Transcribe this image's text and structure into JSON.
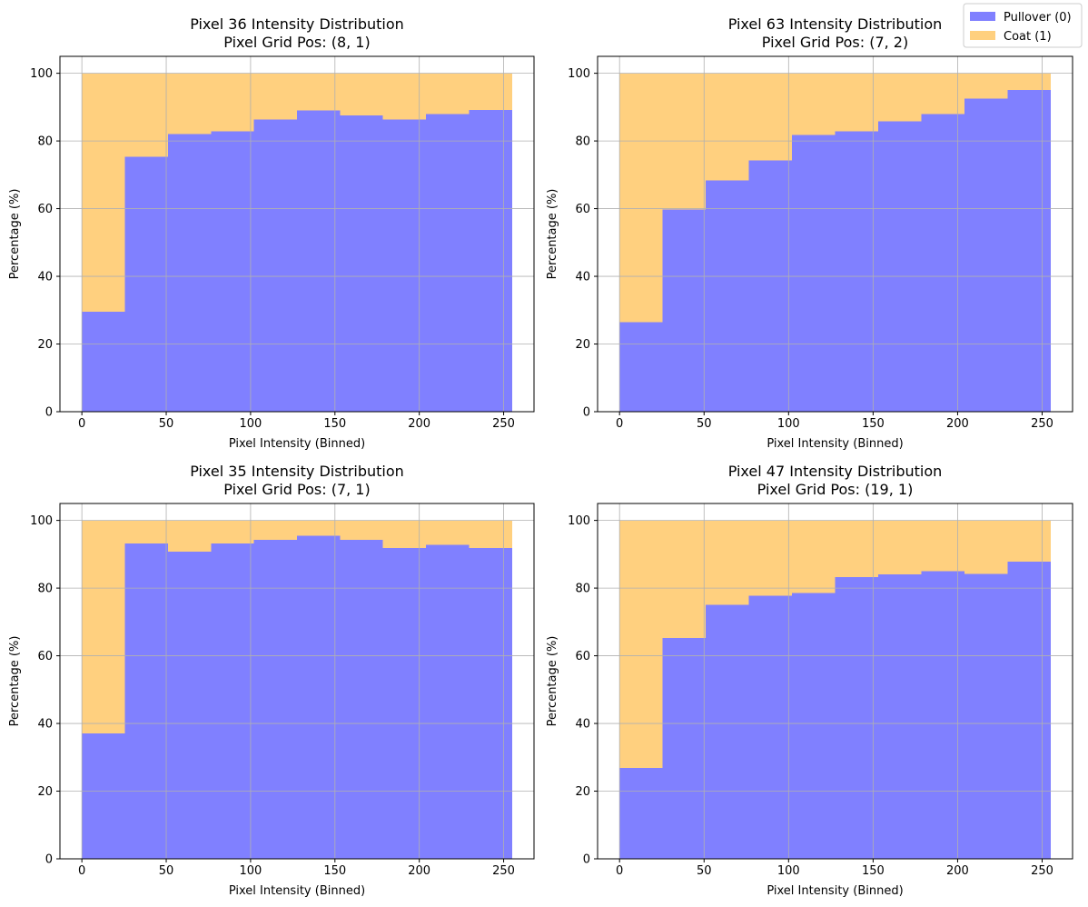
{
  "legend": {
    "placement": "top-right",
    "entries": [
      {
        "label": "Pullover (0)",
        "color": "#8080ff"
      },
      {
        "label": "Coat (1)",
        "color": "#ffd07f"
      }
    ]
  },
  "chart_data": [
    {
      "type": "bar",
      "stacked": true,
      "title": "Pixel 36 Intensity Distribution",
      "subtitle": "Pixel Grid Pos: (8, 1)",
      "xlabel": "Pixel Intensity (Binned)",
      "ylabel": "Percentage (%)",
      "xlim": [
        -13,
        268
      ],
      "ylim": [
        0,
        105
      ],
      "xticks": [
        0,
        50,
        100,
        150,
        200,
        250
      ],
      "yticks": [
        0,
        20,
        40,
        60,
        80,
        100
      ],
      "grid": true,
      "bin_edges": [
        0,
        25.5,
        51,
        76.5,
        102,
        127.5,
        153,
        178.5,
        204,
        229.5,
        255
      ],
      "series": [
        {
          "name": "Pullover (0)",
          "values": [
            29.5,
            75.3,
            82.0,
            82.8,
            86.3,
            89.0,
            87.5,
            86.3,
            88.0,
            89.2
          ]
        },
        {
          "name": "Coat (1)",
          "values": [
            70.5,
            24.7,
            18.0,
            17.2,
            13.7,
            11.0,
            12.5,
            13.7,
            12.0,
            10.8
          ]
        }
      ]
    },
    {
      "type": "bar",
      "stacked": true,
      "title": "Pixel 63 Intensity Distribution",
      "subtitle": "Pixel Grid Pos: (7, 2)",
      "xlabel": "Pixel Intensity (Binned)",
      "ylabel": "Percentage (%)",
      "xlim": [
        -13,
        268
      ],
      "ylim": [
        0,
        105
      ],
      "xticks": [
        0,
        50,
        100,
        150,
        200,
        250
      ],
      "yticks": [
        0,
        20,
        40,
        60,
        80,
        100
      ],
      "grid": true,
      "bin_edges": [
        0,
        25.5,
        51,
        76.5,
        102,
        127.5,
        153,
        178.5,
        204,
        229.5,
        255
      ],
      "series": [
        {
          "name": "Pullover (0)",
          "values": [
            26.5,
            59.8,
            68.3,
            74.2,
            81.8,
            82.8,
            85.8,
            88.0,
            92.5,
            95.0
          ]
        },
        {
          "name": "Coat (1)",
          "values": [
            73.5,
            40.2,
            31.7,
            25.8,
            18.2,
            17.2,
            14.2,
            12.0,
            7.5,
            5.0
          ]
        }
      ]
    },
    {
      "type": "bar",
      "stacked": true,
      "title": "Pixel 35 Intensity Distribution",
      "subtitle": "Pixel Grid Pos: (7, 1)",
      "xlabel": "Pixel Intensity (Binned)",
      "ylabel": "Percentage (%)",
      "xlim": [
        -13,
        268
      ],
      "ylim": [
        0,
        105
      ],
      "xticks": [
        0,
        50,
        100,
        150,
        200,
        250
      ],
      "yticks": [
        0,
        20,
        40,
        60,
        80,
        100
      ],
      "grid": true,
      "bin_edges": [
        0,
        25.5,
        51,
        76.5,
        102,
        127.5,
        153,
        178.5,
        204,
        229.5,
        255
      ],
      "series": [
        {
          "name": "Pullover (0)",
          "values": [
            37.0,
            93.2,
            90.8,
            93.2,
            94.2,
            95.5,
            94.2,
            91.8,
            92.8,
            91.8
          ]
        },
        {
          "name": "Coat (1)",
          "values": [
            63.0,
            6.8,
            9.2,
            6.8,
            5.8,
            4.5,
            5.8,
            8.2,
            7.2,
            8.2
          ]
        }
      ]
    },
    {
      "type": "bar",
      "stacked": true,
      "title": "Pixel 47 Intensity Distribution",
      "subtitle": "Pixel Grid Pos: (19, 1)",
      "xlabel": "Pixel Intensity (Binned)",
      "ylabel": "Percentage (%)",
      "xlim": [
        -13,
        268
      ],
      "ylim": [
        0,
        105
      ],
      "xticks": [
        0,
        50,
        100,
        150,
        200,
        250
      ],
      "yticks": [
        0,
        20,
        40,
        60,
        80,
        100
      ],
      "grid": true,
      "bin_edges": [
        0,
        25.5,
        51,
        76.5,
        102,
        127.5,
        153,
        178.5,
        204,
        229.5,
        255
      ],
      "series": [
        {
          "name": "Pullover (0)",
          "values": [
            26.8,
            65.3,
            75.0,
            77.8,
            78.5,
            83.2,
            84.0,
            85.0,
            84.2,
            87.8
          ]
        },
        {
          "name": "Coat (1)",
          "values": [
            73.2,
            34.7,
            25.0,
            22.2,
            21.5,
            16.8,
            16.0,
            15.0,
            15.8,
            12.2
          ]
        }
      ]
    }
  ]
}
